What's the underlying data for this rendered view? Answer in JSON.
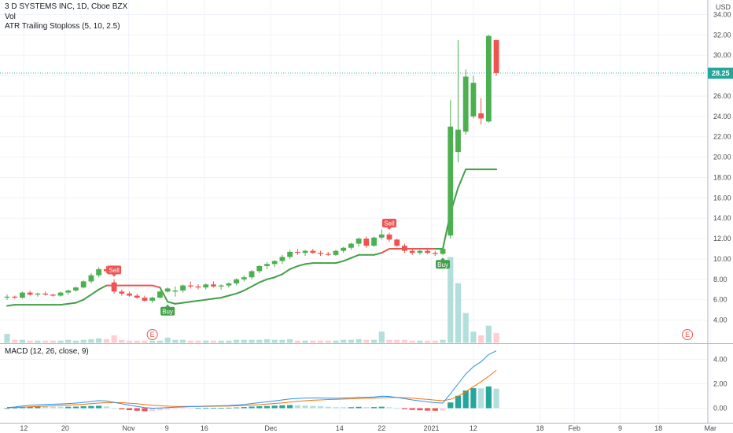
{
  "header": {
    "title": "3 D SYSTEMS INC, 1D, Cboe BZX",
    "volume_label": "Vol",
    "indicator_label": "ATR Trailing Stoploss (5, 10, 2.5)",
    "macd_label": "MACD (12, 26, close, 9)",
    "currency": "USD"
  },
  "colors": {
    "up": "#4caf50",
    "down": "#ef5350",
    "stop_up": "#43a047",
    "stop_down": "#ef5350",
    "macd_line": "#2196f3",
    "signal_line": "#ff6d00",
    "hist_up_strong": "#26a69a",
    "hist_up_weak": "#b2dfdb",
    "hist_down_strong": "#ef5350",
    "hist_down_weak": "#ffcdd2",
    "vol_up": "#b2dfdb",
    "vol_down": "#ffcdd2",
    "grid": "#f0f3fa",
    "last_price": "#26a69a"
  },
  "chart_data": [
    {
      "type": "candlestick",
      "title": "3 D SYSTEMS INC, 1D, Cboe BZX",
      "ylim": [
        3.0,
        34.0
      ],
      "y_ticks": [
        "4.00",
        "6.00",
        "8.00",
        "10.00",
        "12.00",
        "14.00",
        "16.00",
        "18.00",
        "20.00",
        "22.00",
        "24.00",
        "26.00",
        "28.00",
        "30.00",
        "32.00",
        "34.00"
      ],
      "x_ticks": [
        "12",
        "20",
        "Nov",
        "9",
        "16",
        "Dec",
        "14",
        "22",
        "2021",
        "12",
        "18",
        "Feb",
        "9",
        "18",
        "Mar"
      ],
      "last_price": "28.25",
      "ohlc": [
        [
          6.2,
          6.5,
          6.0,
          6.3
        ],
        [
          6.3,
          6.4,
          6.1,
          6.2
        ],
        [
          6.2,
          6.8,
          6.1,
          6.7
        ],
        [
          6.7,
          6.9,
          6.4,
          6.5
        ],
        [
          6.5,
          6.7,
          6.3,
          6.6
        ],
        [
          6.6,
          6.8,
          6.4,
          6.5
        ],
        [
          6.5,
          6.6,
          6.3,
          6.4
        ],
        [
          6.4,
          6.8,
          6.3,
          6.7
        ],
        [
          6.7,
          7.0,
          6.5,
          6.9
        ],
        [
          6.9,
          7.3,
          6.8,
          7.2
        ],
        [
          7.2,
          7.9,
          7.1,
          7.8
        ],
        [
          7.8,
          8.6,
          7.6,
          8.4
        ],
        [
          8.4,
          9.2,
          8.2,
          9.0
        ],
        [
          9.0,
          9.3,
          8.6,
          8.8
        ],
        [
          7.7,
          8.0,
          6.6,
          6.8
        ],
        [
          6.8,
          7.0,
          6.4,
          6.6
        ],
        [
          6.6,
          6.8,
          6.3,
          6.4
        ],
        [
          6.4,
          6.6,
          6.1,
          6.2
        ],
        [
          6.2,
          6.4,
          5.8,
          5.9
        ],
        [
          5.9,
          6.3,
          5.7,
          6.2
        ],
        [
          6.2,
          6.9,
          6.1,
          6.8
        ],
        [
          6.8,
          7.2,
          6.7,
          7.1
        ],
        [
          6.8,
          7.3,
          6.3,
          6.9
        ],
        [
          6.9,
          7.5,
          6.7,
          7.4
        ],
        [
          7.4,
          7.8,
          7.1,
          7.3
        ],
        [
          7.3,
          7.5,
          7.0,
          7.2
        ],
        [
          7.2,
          7.6,
          7.0,
          7.5
        ],
        [
          7.5,
          7.8,
          7.2,
          7.3
        ],
        [
          7.3,
          7.5,
          7.0,
          7.4
        ],
        [
          7.4,
          7.7,
          7.2,
          7.6
        ],
        [
          7.6,
          8.1,
          7.4,
          8.0
        ],
        [
          8.0,
          8.4,
          7.8,
          8.2
        ],
        [
          8.2,
          8.9,
          8.0,
          8.8
        ],
        [
          8.8,
          9.4,
          8.6,
          9.3
        ],
        [
          9.3,
          9.7,
          9.0,
          9.5
        ],
        [
          9.5,
          9.9,
          9.2,
          9.8
        ],
        [
          9.8,
          10.4,
          9.5,
          10.2
        ],
        [
          10.2,
          10.9,
          10.0,
          10.7
        ],
        [
          10.7,
          11.0,
          10.4,
          10.6
        ],
        [
          10.6,
          10.9,
          10.3,
          10.8
        ],
        [
          10.8,
          11.0,
          10.5,
          10.6
        ],
        [
          10.6,
          10.8,
          10.3,
          10.5
        ],
        [
          10.5,
          10.7,
          10.3,
          10.4
        ],
        [
          10.4,
          10.9,
          10.3,
          10.8
        ],
        [
          10.8,
          11.2,
          10.6,
          11.1
        ],
        [
          11.1,
          11.6,
          10.9,
          11.5
        ],
        [
          11.5,
          12.1,
          11.2,
          12.0
        ],
        [
          12.0,
          12.2,
          11.1,
          11.3
        ],
        [
          11.3,
          12.2,
          11.2,
          12.1
        ],
        [
          12.1,
          12.9,
          11.9,
          12.4
        ],
        [
          12.4,
          12.6,
          11.7,
          11.9
        ],
        [
          11.9,
          12.0,
          11.2,
          11.3
        ],
        [
          11.3,
          11.5,
          10.6,
          10.8
        ],
        [
          10.8,
          11.0,
          10.4,
          10.6
        ],
        [
          10.6,
          10.9,
          10.4,
          10.8
        ],
        [
          10.8,
          11.0,
          10.5,
          10.6
        ],
        [
          10.6,
          10.8,
          10.3,
          10.5
        ],
        [
          10.5,
          11.1,
          10.4,
          11.0
        ],
        [
          12.3,
          25.6,
          12.0,
          23.0
        ],
        [
          20.5,
          31.5,
          19.5,
          22.7
        ],
        [
          22.5,
          28.6,
          22.2,
          27.9
        ],
        [
          24.0,
          28.0,
          23.8,
          27.3
        ],
        [
          24.3,
          25.8,
          23.2,
          23.8
        ],
        [
          23.5,
          32.0,
          23.4,
          31.9
        ],
        [
          31.5,
          31.5,
          28.0,
          28.25
        ]
      ],
      "stop": [
        5.4,
        5.5,
        5.5,
        5.5,
        5.5,
        5.5,
        5.5,
        5.5,
        5.6,
        5.7,
        6.0,
        6.5,
        7.0,
        7.4,
        7.4,
        7.4,
        7.4,
        7.4,
        7.4,
        7.4,
        7.2,
        5.8,
        5.6,
        5.7,
        5.8,
        5.9,
        6.0,
        6.1,
        6.2,
        6.4,
        6.6,
        6.9,
        7.3,
        7.7,
        8.0,
        8.2,
        8.5,
        9.0,
        9.3,
        9.5,
        9.6,
        9.6,
        9.6,
        9.6,
        9.8,
        10.1,
        10.4,
        10.4,
        10.4,
        10.6,
        11.0,
        11.0,
        11.0,
        11.0,
        11.0,
        11.0,
        11.0,
        11.0,
        14.5,
        17.0,
        18.8,
        18.8,
        18.8,
        18.8,
        18.8
      ],
      "stop_state": [
        "up",
        "up",
        "up",
        "up",
        "up",
        "up",
        "up",
        "up",
        "up",
        "up",
        "up",
        "up",
        "up",
        "up",
        "down",
        "down",
        "down",
        "down",
        "down",
        "down",
        "down",
        "up",
        "up",
        "up",
        "up",
        "up",
        "up",
        "up",
        "up",
        "up",
        "up",
        "up",
        "up",
        "up",
        "up",
        "up",
        "up",
        "up",
        "up",
        "up",
        "up",
        "up",
        "up",
        "up",
        "up",
        "up",
        "up",
        "up",
        "up",
        "up",
        "down",
        "down",
        "down",
        "down",
        "down",
        "down",
        "down",
        "up",
        "up",
        "up",
        "up",
        "up",
        "up",
        "up",
        "up"
      ],
      "signals": [
        {
          "label": "Sell",
          "index": 14,
          "side": "sell"
        },
        {
          "label": "Buy",
          "index": 21,
          "side": "buy"
        },
        {
          "label": "Sell",
          "index": 50,
          "side": "sell"
        },
        {
          "label": "Buy",
          "index": 57,
          "side": "buy"
        }
      ],
      "earnings_markers": [
        "E",
        "E"
      ]
    },
    {
      "type": "bar",
      "title": "Vol",
      "values": [
        1.2,
        0.4,
        0.4,
        0.3,
        0.3,
        0.3,
        0.3,
        0.3,
        0.4,
        0.3,
        0.4,
        0.5,
        0.6,
        0.5,
        1.0,
        0.4,
        0.3,
        0.3,
        0.3,
        0.3,
        0.3,
        0.7,
        0.4,
        0.4,
        0.3,
        0.3,
        0.3,
        0.3,
        0.3,
        0.3,
        0.4,
        0.4,
        0.4,
        0.4,
        0.5,
        0.4,
        0.4,
        0.5,
        0.3,
        0.3,
        0.3,
        0.3,
        0.3,
        0.3,
        0.4,
        0.4,
        0.5,
        0.4,
        0.4,
        1.5,
        0.4,
        0.4,
        0.4,
        0.3,
        0.3,
        0.3,
        0.3,
        0.4,
        11.5,
        8.0,
        4.0,
        1.5,
        1.0,
        2.3,
        1.3
      ]
    },
    {
      "type": "line",
      "title": "MACD (12, 26, close, 9)",
      "ylim": [
        -0.5,
        5.5
      ],
      "y_ticks": [
        "0.00",
        "2.00",
        "4.00"
      ],
      "series": [
        {
          "name": "MACD",
          "values": [
            0.05,
            0.1,
            0.18,
            0.24,
            0.28,
            0.31,
            0.33,
            0.35,
            0.38,
            0.42,
            0.48,
            0.55,
            0.62,
            0.6,
            0.48,
            0.36,
            0.25,
            0.15,
            0.05,
            0.0,
            0.02,
            0.05,
            0.08,
            0.1,
            0.13,
            0.15,
            0.17,
            0.19,
            0.2,
            0.22,
            0.26,
            0.31,
            0.38,
            0.45,
            0.52,
            0.6,
            0.68,
            0.76,
            0.8,
            0.83,
            0.84,
            0.84,
            0.82,
            0.81,
            0.83,
            0.85,
            0.9,
            0.9,
            0.92,
            0.98,
            0.96,
            0.88,
            0.78,
            0.68,
            0.6,
            0.52,
            0.45,
            0.42,
            1.2,
            2.0,
            2.8,
            3.4,
            3.8,
            4.4,
            4.7
          ]
        },
        {
          "name": "Signal",
          "values": [
            0.05,
            0.06,
            0.08,
            0.11,
            0.14,
            0.17,
            0.2,
            0.23,
            0.26,
            0.29,
            0.32,
            0.37,
            0.42,
            0.46,
            0.47,
            0.45,
            0.41,
            0.36,
            0.3,
            0.24,
            0.2,
            0.17,
            0.15,
            0.14,
            0.14,
            0.14,
            0.15,
            0.16,
            0.17,
            0.18,
            0.2,
            0.22,
            0.25,
            0.29,
            0.34,
            0.39,
            0.44,
            0.5,
            0.56,
            0.61,
            0.65,
            0.68,
            0.71,
            0.73,
            0.75,
            0.77,
            0.79,
            0.81,
            0.83,
            0.86,
            0.88,
            0.88,
            0.86,
            0.82,
            0.77,
            0.72,
            0.66,
            0.61,
            0.73,
            0.98,
            1.35,
            1.76,
            2.17,
            2.62,
            3.1
          ]
        }
      ]
    }
  ]
}
